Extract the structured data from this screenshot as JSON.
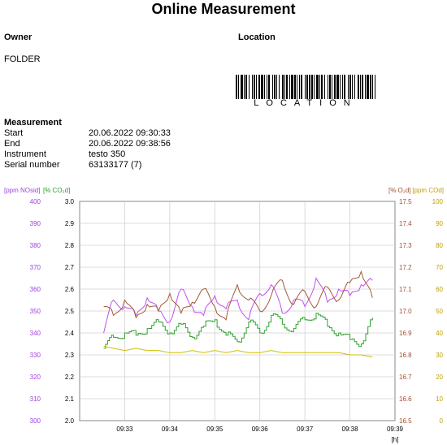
{
  "header": {
    "title": "Online Measurement"
  },
  "owner": {
    "label": "Owner",
    "value": "FOLDER"
  },
  "location": {
    "label": "Location",
    "barcode_text": "LOCATION"
  },
  "measurement": {
    "label": "Measurement",
    "rows": [
      {
        "key": "Start",
        "value": "20.06.2022 09:30:33"
      },
      {
        "key": "End",
        "value": "20.06.2022 09:38:56"
      },
      {
        "key": "Instrument",
        "value": "testo 350"
      },
      {
        "key": "Serial number",
        "value": "63133177 (7)"
      }
    ]
  },
  "chart_data": {
    "type": "line",
    "x_unit": "[h]",
    "x_ticks": [
      "09:33",
      "09:34",
      "09:35",
      "09:36",
      "09:37",
      "09:38",
      "09:39"
    ],
    "xlim": [
      "09:32:00",
      "09:39:00"
    ],
    "grid": true,
    "axes": [
      {
        "id": "nosid",
        "label": "[ppm NOsid]",
        "side": "left-outer",
        "color": "#a040e0",
        "ylim": [
          300,
          400
        ],
        "ticks": [
          "300",
          "310",
          "320",
          "330",
          "340",
          "350",
          "360",
          "370",
          "380",
          "390",
          "400"
        ]
      },
      {
        "id": "co2",
        "label": "[% CO₂d]",
        "side": "left-inner",
        "color": "#20a020",
        "ylim": [
          2.0,
          3.0
        ],
        "ticks": [
          "2.0",
          "2.1",
          "2.2",
          "2.3",
          "2.4",
          "2.5",
          "2.6",
          "2.7",
          "2.8",
          "2.9",
          "3.0"
        ]
      },
      {
        "id": "o2",
        "label": "[% O₂d]",
        "side": "right-inner",
        "color": "#a05030",
        "ylim": [
          16.5,
          17.5
        ],
        "ticks": [
          "16.5",
          "16.6",
          "16.7",
          "16.8",
          "16.9",
          "17.0",
          "17.1",
          "17.2",
          "17.3",
          "17.4",
          "17.5"
        ]
      },
      {
        "id": "co",
        "label": "[ppm COd]",
        "side": "right-outer",
        "color": "#c0a000",
        "ylim": [
          0,
          100
        ],
        "ticks": [
          "0",
          "10",
          "20",
          "30",
          "40",
          "50",
          "60",
          "70",
          "80",
          "90",
          "100"
        ]
      }
    ],
    "series": [
      {
        "axis": "nosid",
        "color": "#c050f0",
        "x": [
          "09:32:32",
          "09:32:45",
          "09:33:00",
          "09:33:15",
          "09:33:30",
          "09:33:45",
          "09:34:00",
          "09:34:15",
          "09:34:30",
          "09:34:45",
          "09:35:00",
          "09:35:15",
          "09:35:30",
          "09:35:45",
          "09:36:00",
          "09:36:15",
          "09:36:30",
          "09:36:45",
          "09:37:00",
          "09:37:15",
          "09:37:30",
          "09:37:45",
          "09:38:00",
          "09:38:15",
          "09:38:30"
        ],
        "y": [
          340,
          355,
          352,
          348,
          356,
          350,
          345,
          360,
          352,
          348,
          357,
          351,
          355,
          346,
          358,
          362,
          349,
          355,
          352,
          365,
          354,
          360,
          357,
          362,
          364
        ]
      },
      {
        "axis": "co2",
        "color": "#30a030",
        "x": [
          "09:32:32",
          "09:32:45",
          "09:33:00",
          "09:33:15",
          "09:33:30",
          "09:33:45",
          "09:34:00",
          "09:34:15",
          "09:34:30",
          "09:34:45",
          "09:35:00",
          "09:35:15",
          "09:35:30",
          "09:35:45",
          "09:36:00",
          "09:36:15",
          "09:36:30",
          "09:36:45",
          "09:37:00",
          "09:37:15",
          "09:37:30",
          "09:37:45",
          "09:38:00",
          "09:38:15",
          "09:38:30"
        ],
        "y": [
          2.33,
          2.38,
          2.4,
          2.39,
          2.42,
          2.45,
          2.4,
          2.44,
          2.38,
          2.43,
          2.46,
          2.39,
          2.36,
          2.45,
          2.4,
          2.48,
          2.44,
          2.42,
          2.46,
          2.49,
          2.43,
          2.4,
          2.37,
          2.35,
          2.47
        ]
      },
      {
        "axis": "o2",
        "color": "#a05a38",
        "x": [
          "09:32:32",
          "09:32:45",
          "09:33:00",
          "09:33:15",
          "09:33:30",
          "09:33:45",
          "09:34:00",
          "09:34:15",
          "09:34:30",
          "09:34:45",
          "09:35:00",
          "09:35:15",
          "09:35:30",
          "09:35:45",
          "09:36:00",
          "09:36:15",
          "09:36:30",
          "09:36:45",
          "09:37:00",
          "09:37:15",
          "09:37:30",
          "09:37:45",
          "09:38:00",
          "09:38:15",
          "09:38:30"
        ],
        "y": [
          17.02,
          16.98,
          17.05,
          16.97,
          17.03,
          17.0,
          17.08,
          16.99,
          17.04,
          17.1,
          17.02,
          16.96,
          17.12,
          17.05,
          17.0,
          17.07,
          17.14,
          17.03,
          17.09,
          17.02,
          17.11,
          17.05,
          17.13,
          17.18,
          17.06
        ]
      },
      {
        "axis": "co",
        "color": "#d0c000",
        "x": [
          "09:32:32",
          "09:32:45",
          "09:33:00",
          "09:33:15",
          "09:33:30",
          "09:33:45",
          "09:34:00",
          "09:34:15",
          "09:34:30",
          "09:34:45",
          "09:35:00",
          "09:35:15",
          "09:35:30",
          "09:35:45",
          "09:36:00",
          "09:36:15",
          "09:36:30",
          "09:36:45",
          "09:37:00",
          "09:37:15",
          "09:37:30",
          "09:37:45",
          "09:38:00",
          "09:38:15",
          "09:38:30"
        ],
        "y": [
          34,
          33,
          32,
          33,
          32,
          32,
          31,
          31,
          32,
          31,
          32,
          31,
          32,
          31,
          31,
          32,
          31,
          31,
          31,
          31,
          31,
          31,
          30,
          30,
          29
        ]
      }
    ]
  }
}
